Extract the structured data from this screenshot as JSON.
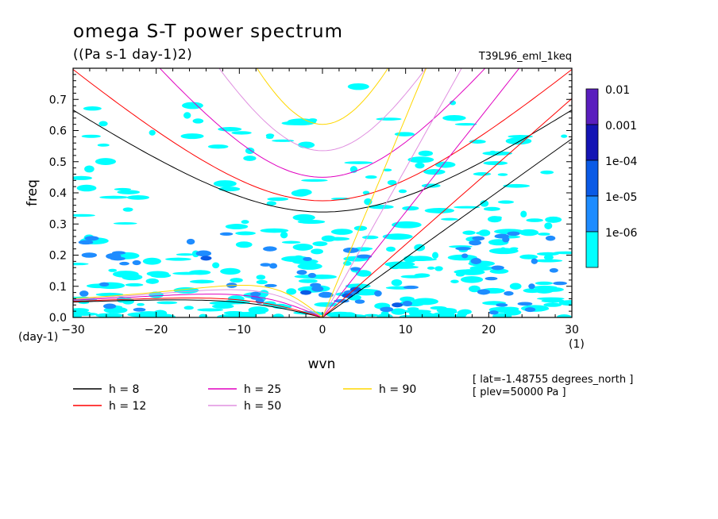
{
  "chart_data": {
    "type": "heatmap",
    "title": "omega S-T power spectrum",
    "subtitle": "((Pa s-1 day-1)2)",
    "experiment": "T39L96_eml_1keq",
    "xlabel": "wvn",
    "ylabel": "freq",
    "x_unit": "(1)",
    "y_unit": "(day-1)",
    "xlim": [
      -30,
      30
    ],
    "ylim": [
      0,
      0.8
    ],
    "x_ticks": [
      "-30",
      "-20",
      "-10",
      "0",
      "10",
      "20",
      "30"
    ],
    "y_ticks": [
      "0.0",
      "0.1",
      "0.2",
      "0.3",
      "0.4",
      "0.5",
      "0.6",
      "0.7"
    ],
    "colorbar": {
      "labels": [
        "0.01",
        "0.001",
        "1e-04",
        "1e-05",
        "1e-06"
      ],
      "colors": [
        "#5a1ebe",
        "#1414b4",
        "#0a5ae6",
        "#1e8cff",
        "#00ffff"
      ]
    },
    "series": [
      {
        "name": "h = 8",
        "color": "#000000",
        "equivalent_depth_m": 8
      },
      {
        "name": "h = 12",
        "color": "#ff0000",
        "equivalent_depth_m": 12
      },
      {
        "name": "h = 25",
        "color": "#e000c0",
        "equivalent_depth_m": 25
      },
      {
        "name": "h = 50",
        "color": "#e090e0",
        "equivalent_depth_m": 50
      },
      {
        "name": "h = 90",
        "color": "#ffd700",
        "equivalent_depth_m": 90
      }
    ],
    "annotations": [
      "[ lat=-1.48755 degrees_north ]",
      "[ plev=50000 Pa ]"
    ],
    "grid": false
  }
}
